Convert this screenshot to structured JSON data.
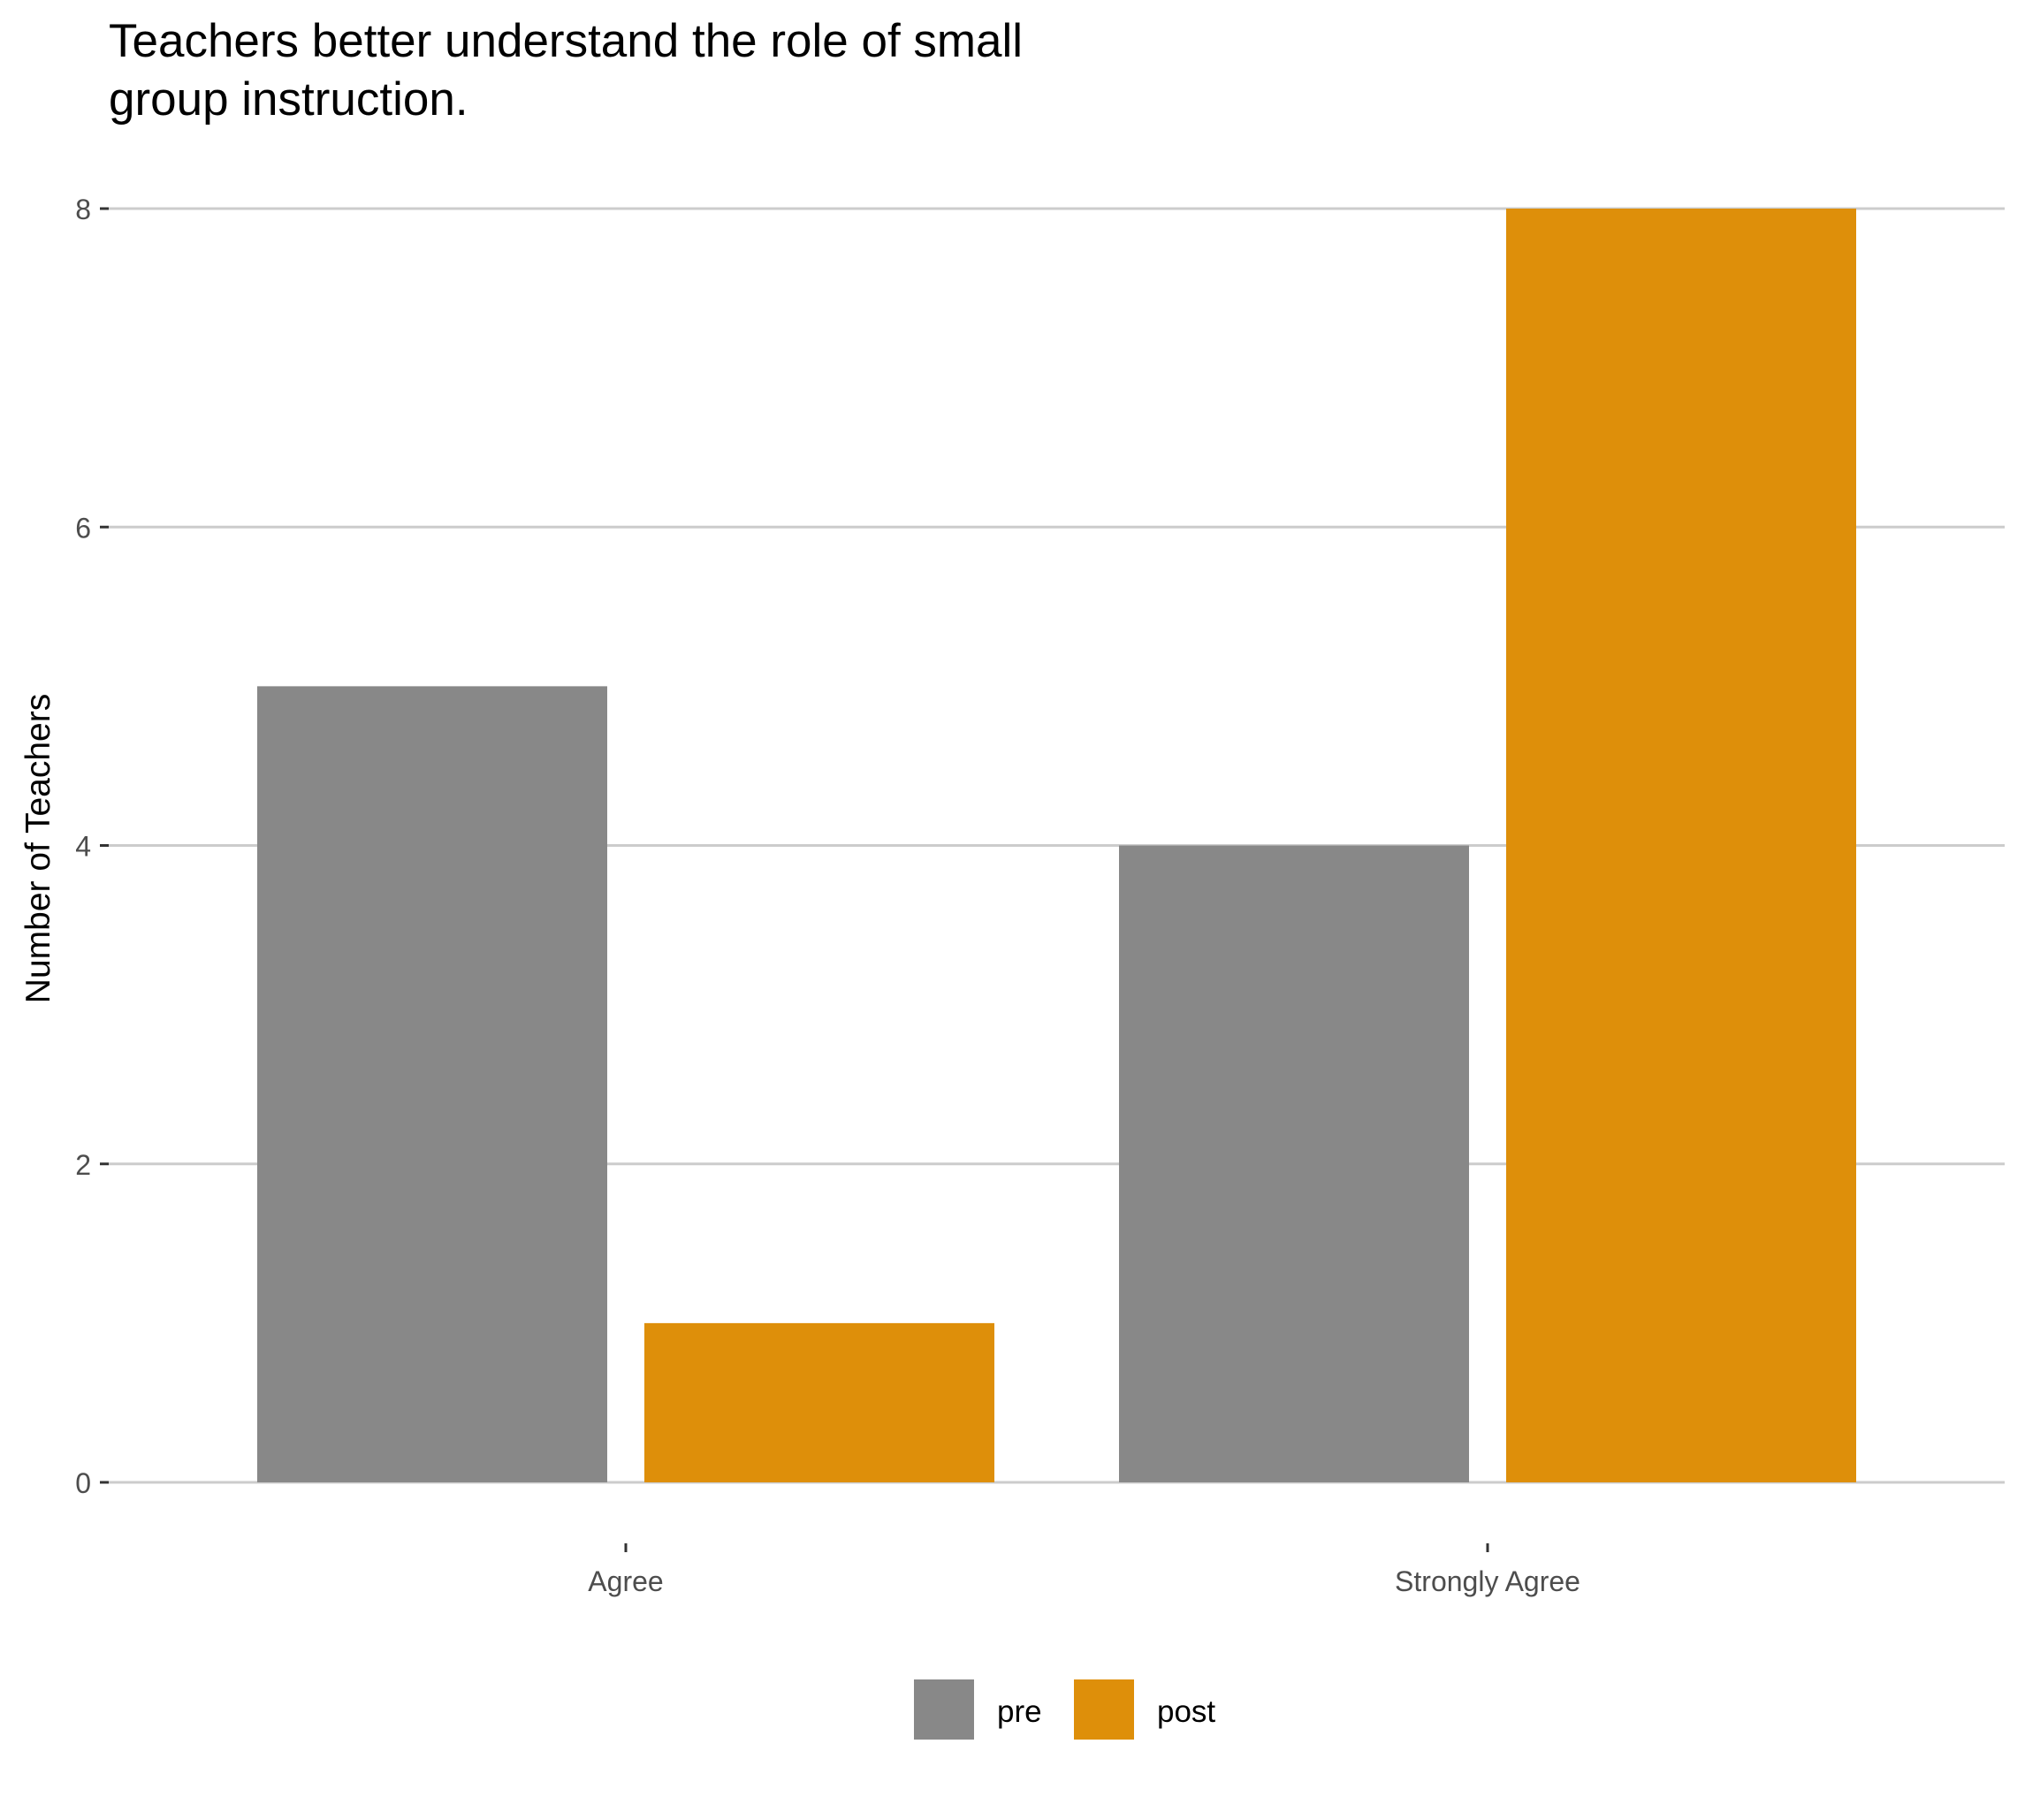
{
  "chart_data": {
    "type": "bar",
    "title": "Teachers better understand the role of small group instruction.",
    "title_lines": [
      "Teachers better understand the role of small",
      "group instruction."
    ],
    "xlabel": "",
    "ylabel": "Number of Teachers",
    "categories": [
      "Agree",
      "Strongly Agree"
    ],
    "series": [
      {
        "name": "pre",
        "values": [
          5,
          4
        ],
        "color": "#888888"
      },
      {
        "name": "post",
        "values": [
          1,
          8
        ],
        "color": "#DE8F0A"
      }
    ],
    "ylim": [
      0,
      8
    ],
    "yticks": [
      0,
      2,
      4,
      6,
      8
    ],
    "grid": "horizontal",
    "grid_color": "#CCCCCC",
    "legend_position": "bottom"
  }
}
